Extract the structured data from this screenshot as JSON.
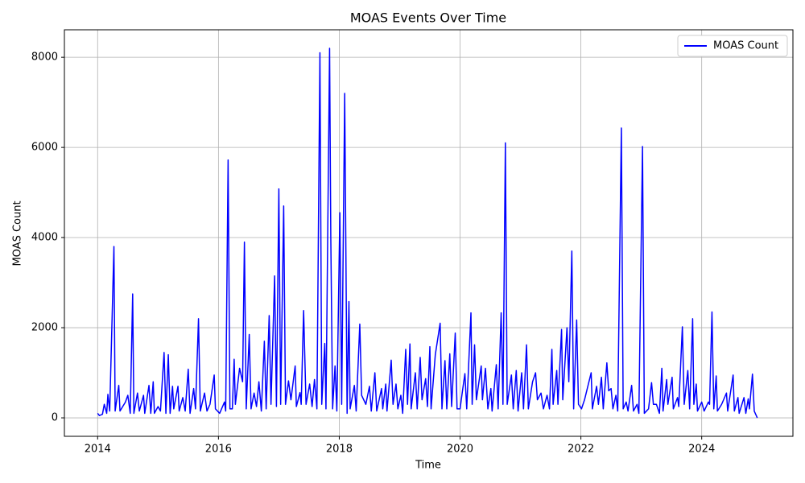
{
  "chart_data": {
    "type": "line",
    "title": "MOAS Events Over Time",
    "x_label": "Time",
    "y_label": "MOAS Count",
    "x": [
      2014.0,
      2014.03,
      2014.08,
      2014.11,
      2014.15,
      2014.17,
      2014.2,
      2014.27,
      2014.29,
      2014.35,
      2014.37,
      2014.46,
      2014.5,
      2014.54,
      2014.58,
      2014.6,
      2014.66,
      2014.69,
      2014.76,
      2014.78,
      2014.85,
      2014.88,
      2014.92,
      2014.94,
      2015.0,
      2015.04,
      2015.1,
      2015.13,
      2015.17,
      2015.2,
      2015.24,
      2015.26,
      2015.33,
      2015.35,
      2015.41,
      2015.45,
      2015.5,
      2015.53,
      2015.59,
      2015.62,
      2015.67,
      2015.7,
      2015.77,
      2015.81,
      2015.86,
      2015.93,
      2015.95,
      2016.02,
      2016.1,
      2016.12,
      2016.16,
      2016.19,
      2016.23,
      2016.26,
      2016.28,
      2016.35,
      2016.4,
      2016.43,
      2016.46,
      2016.51,
      2016.54,
      2016.59,
      2016.63,
      2016.67,
      2016.71,
      2016.76,
      2016.79,
      2016.84,
      2016.87,
      2016.93,
      2016.96,
      2017.0,
      2017.03,
      2017.08,
      2017.11,
      2017.16,
      2017.2,
      2017.27,
      2017.29,
      2017.35,
      2017.37,
      2017.41,
      2017.45,
      2017.51,
      2017.55,
      2017.59,
      2017.63,
      2017.68,
      2017.71,
      2017.76,
      2017.78,
      2017.84,
      2017.86,
      2017.89,
      2017.93,
      2017.96,
      2018.01,
      2018.04,
      2018.09,
      2018.13,
      2018.16,
      2018.18,
      2018.25,
      2018.28,
      2018.34,
      2018.37,
      2018.44,
      2018.5,
      2018.53,
      2018.59,
      2018.62,
      2018.7,
      2018.72,
      2018.77,
      2018.79,
      2018.86,
      2018.89,
      2018.94,
      2018.97,
      2019.02,
      2019.05,
      2019.1,
      2019.13,
      2019.17,
      2019.19,
      2019.26,
      2019.29,
      2019.34,
      2019.37,
      2019.43,
      2019.46,
      2019.5,
      2019.52,
      2019.59,
      2019.67,
      2019.7,
      2019.75,
      2019.78,
      2019.83,
      2019.86,
      2019.92,
      2019.95,
      2020.0,
      2020.04,
      2020.08,
      2020.11,
      2020.18,
      2020.2,
      2020.24,
      2020.27,
      2020.35,
      2020.37,
      2020.42,
      2020.46,
      2020.51,
      2020.53,
      2020.6,
      2020.63,
      2020.68,
      2020.71,
      2020.75,
      2020.78,
      2020.85,
      2020.88,
      2020.93,
      2020.96,
      2021.02,
      2021.05,
      2021.1,
      2021.13,
      2021.2,
      2021.25,
      2021.28,
      2021.34,
      2021.38,
      2021.44,
      2021.48,
      2021.52,
      2021.54,
      2021.6,
      2021.62,
      2021.68,
      2021.7,
      2021.77,
      2021.8,
      2021.85,
      2021.88,
      2021.93,
      2021.96,
      2022.01,
      2022.06,
      2022.17,
      2022.19,
      2022.26,
      2022.29,
      2022.34,
      2022.37,
      2022.43,
      2022.46,
      2022.5,
      2022.53,
      2022.58,
      2022.61,
      2022.67,
      2022.7,
      2022.75,
      2022.78,
      2022.84,
      2022.87,
      2022.93,
      2022.96,
      2023.02,
      2023.05,
      2023.12,
      2023.17,
      2023.2,
      2023.25,
      2023.3,
      2023.34,
      2023.36,
      2023.42,
      2023.44,
      2023.51,
      2023.53,
      2023.6,
      2023.62,
      2023.68,
      2023.71,
      2023.77,
      2023.8,
      2023.85,
      2023.87,
      2023.91,
      2023.93,
      2024.0,
      2024.04,
      2024.11,
      2024.13,
      2024.17,
      2024.2,
      2024.24,
      2024.26,
      2024.33,
      2024.41,
      2024.43,
      2024.52,
      2024.54,
      2024.6,
      2024.62,
      2024.7,
      2024.73,
      2024.77,
      2024.79,
      2024.84,
      2024.87,
      2024.92
    ],
    "series": [
      {
        "name": "MOAS Count",
        "color": "#0000ff",
        "values": [
          100,
          50,
          80,
          300,
          100,
          520,
          150,
          3800,
          150,
          720,
          150,
          350,
          500,
          100,
          2750,
          100,
          550,
          150,
          500,
          100,
          720,
          100,
          800,
          100,
          250,
          150,
          1450,
          100,
          1400,
          100,
          700,
          200,
          700,
          150,
          450,
          150,
          1080,
          100,
          650,
          200,
          2200,
          150,
          550,
          150,
          300,
          950,
          200,
          100,
          350,
          150,
          5720,
          200,
          200,
          1300,
          300,
          1100,
          800,
          3900,
          200,
          1850,
          200,
          550,
          250,
          800,
          150,
          1700,
          200,
          2270,
          300,
          3150,
          250,
          5080,
          300,
          4700,
          300,
          820,
          400,
          1150,
          250,
          560,
          300,
          2380,
          300,
          750,
          250,
          850,
          200,
          8100,
          300,
          1650,
          200,
          8200,
          4000,
          200,
          1150,
          150,
          4550,
          300,
          7200,
          100,
          2580,
          200,
          720,
          150,
          2080,
          500,
          300,
          700,
          150,
          1000,
          150,
          650,
          200,
          750,
          150,
          1280,
          300,
          750,
          200,
          500,
          100,
          1520,
          300,
          1640,
          200,
          1000,
          200,
          1340,
          400,
          870,
          250,
          1580,
          200,
          1400,
          2100,
          200,
          1270,
          200,
          1420,
          250,
          1880,
          200,
          200,
          600,
          980,
          200,
          2330,
          300,
          1620,
          400,
          1150,
          400,
          1100,
          200,
          650,
          150,
          1180,
          200,
          2330,
          300,
          6100,
          300,
          950,
          200,
          1050,
          150,
          1000,
          200,
          1620,
          200,
          800,
          1000,
          400,
          550,
          200,
          500,
          200,
          1520,
          300,
          1050,
          300,
          1960,
          400,
          2000,
          800,
          3700,
          200,
          2170,
          300,
          200,
          400,
          1000,
          200,
          700,
          300,
          900,
          200,
          1220,
          600,
          650,
          200,
          500,
          150,
          6430,
          200,
          350,
          150,
          720,
          150,
          300,
          100,
          6020,
          100,
          200,
          780,
          300,
          300,
          100,
          1100,
          150,
          850,
          300,
          900,
          200,
          450,
          250,
          2020,
          300,
          1050,
          200,
          2200,
          300,
          750,
          150,
          350,
          150,
          350,
          300,
          2350,
          200,
          930,
          150,
          300,
          550,
          150,
          950,
          150,
          450,
          100,
          450,
          100,
          420,
          200,
          970,
          150,
          0
        ]
      }
    ],
    "xlim": [
      2013.45,
      2025.51
    ],
    "ylim": [
      -410,
      8610
    ],
    "xticks": [
      2014,
      2016,
      2018,
      2020,
      2022,
      2024
    ],
    "yticks": [
      0,
      2000,
      4000,
      6000,
      8000
    ],
    "grid": true,
    "legend": "upper right"
  }
}
